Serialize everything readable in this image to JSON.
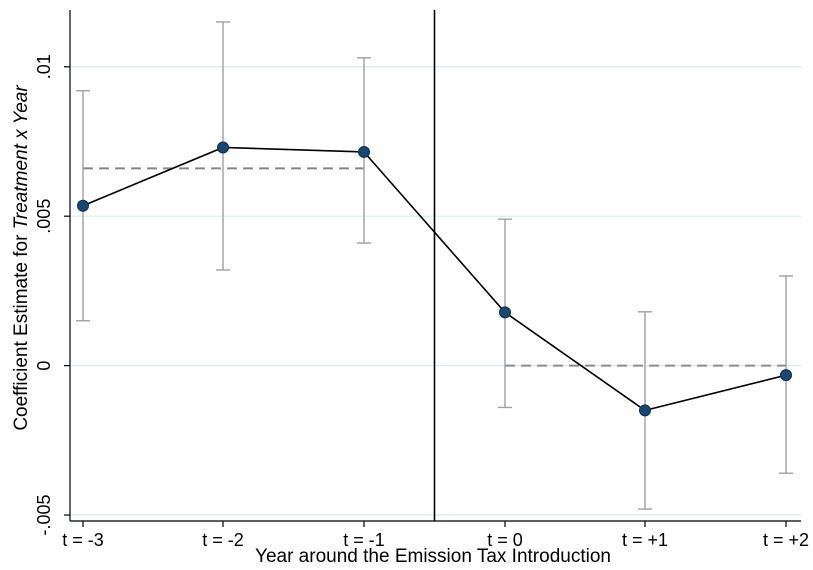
{
  "chart_data": {
    "type": "line",
    "categories": [
      "t = -3",
      "t = -2",
      "t = -1",
      "t = 0",
      "t = +1",
      "t = +2"
    ],
    "values": [
      0.00535,
      0.0073,
      0.00715,
      0.00178,
      -0.0015,
      -0.00032
    ],
    "ci_lower": [
      0.0015,
      0.0032,
      0.0041,
      -0.0014,
      -0.0048,
      -0.0036
    ],
    "ci_upper": [
      0.0092,
      0.0115,
      0.0103,
      0.0049,
      0.0018,
      0.003
    ],
    "pre_period_mean": 0.0066,
    "post_period_mean": 0.0,
    "treatment_break_between": [
      "t = -1",
      "t = 0"
    ],
    "xlabel": "Year around the Emission Tax Introduction",
    "ylabel_plain": "Coefficient Estimate for ",
    "ylabel_italic": "Treatment x Year",
    "ylim": [
      -0.0052,
      0.0119
    ],
    "yticks": [
      -0.005,
      0,
      0.005,
      0.01
    ],
    "ytick_labels": [
      "-.005",
      "0",
      ".005",
      ".01"
    ],
    "grid": "horizontal",
    "colors": {
      "line": "#000000",
      "marker": "#1a476f",
      "marker_edge": "#0f2c47",
      "ci": "#a0a0a0",
      "mean_dash": "#8a8a8a",
      "grid": "#d9ebee",
      "break_line": "#000000"
    }
  }
}
